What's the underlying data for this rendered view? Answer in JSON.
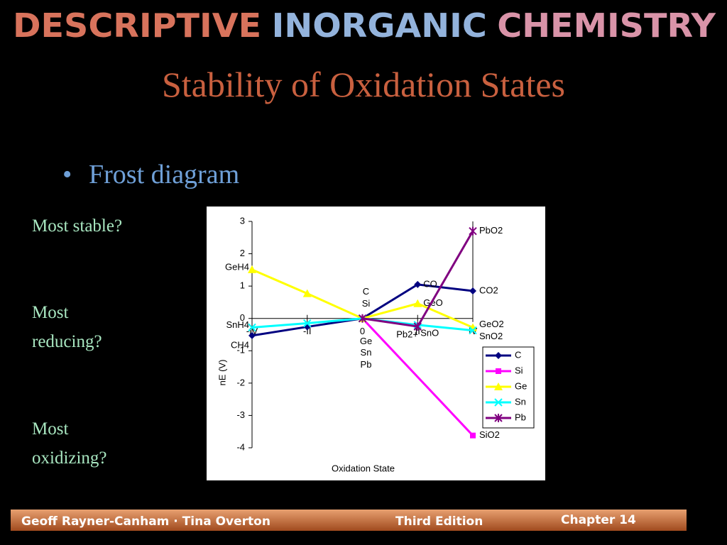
{
  "header": {
    "words": [
      "DESCRIPTIVE",
      "INORGANIC",
      "CHEMISTRY"
    ],
    "colors": [
      "#d8735c",
      "#93b3dc",
      "#d993a8"
    ]
  },
  "title": "Stability of Oxidation States",
  "bullet": "Frost diagram",
  "questions": [
    "Most stable?",
    "Most reducing?",
    "Most oxidizing?"
  ],
  "footer": {
    "authors": "Geoff Rayner-Canham · Tina Overton",
    "edition": "Third Edition",
    "chapter": "Chapter 14"
  },
  "chart_data": {
    "type": "line",
    "xlabel": "Oxidation State",
    "ylabel": "nE (V)",
    "xlim": [
      -4,
      4
    ],
    "ylim": [
      -4,
      3
    ],
    "xticks": [
      {
        "value": -4,
        "label": "-IV"
      },
      {
        "value": -2,
        "label": "-II"
      },
      0,
      {
        "value": 2,
        "label": "II"
      },
      {
        "value": 4,
        "label": "IV"
      }
    ],
    "yticks": [
      -4,
      -3,
      -2,
      -1,
      0,
      1,
      2,
      3
    ],
    "legend": "lower right",
    "series": [
      {
        "name": "C",
        "color": "#000080",
        "marker": "diamond",
        "x": [
          -4,
          -2,
          0,
          2,
          4
        ],
        "values": [
          -0.53,
          -0.26,
          0,
          1.05,
          0.85
        ],
        "point_labels": [
          "CH4",
          null,
          "C",
          "CO",
          "CO2"
        ]
      },
      {
        "name": "Si",
        "color": "#ff00ff",
        "marker": "square",
        "x": [
          0,
          4
        ],
        "values": [
          0,
          -3.62
        ],
        "point_labels": [
          "Si",
          "SiO2"
        ]
      },
      {
        "name": "Ge",
        "color": "#ffff00",
        "marker": "triangle",
        "x": [
          -4,
          -2,
          0,
          2,
          4
        ],
        "values": [
          1.51,
          0.77,
          0,
          0.46,
          -0.28
        ],
        "point_labels": [
          "GeH4",
          null,
          "Ge",
          "GeO",
          "GeO2"
        ]
      },
      {
        "name": "Sn",
        "color": "#00ffff",
        "marker": "x",
        "x": [
          -4,
          -2,
          0,
          2,
          4
        ],
        "values": [
          -0.28,
          -0.15,
          0,
          -0.2,
          -0.37
        ],
        "point_labels": [
          "SnH4",
          null,
          "Sn",
          "SnO",
          "SnO2"
        ]
      },
      {
        "name": "Pb",
        "color": "#800080",
        "marker": "star",
        "x": [
          0,
          2,
          4
        ],
        "values": [
          0,
          -0.25,
          2.7
        ],
        "point_labels": [
          "Pb",
          "Pb2+",
          "PbO2"
        ]
      }
    ]
  }
}
